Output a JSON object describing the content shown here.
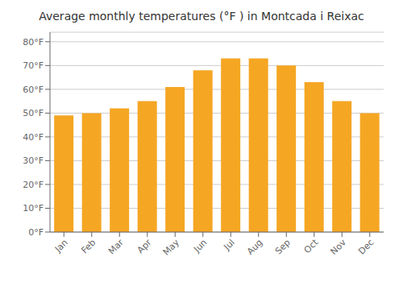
{
  "chart_data": {
    "type": "bar",
    "title": "Average monthly temperatures (°F ) in Montcada i Reixac",
    "categories": [
      "Jan",
      "Feb",
      "Mar",
      "Apr",
      "May",
      "Jun",
      "Jul",
      "Aug",
      "Sep",
      "Oct",
      "Nov",
      "Dec"
    ],
    "values": [
      49,
      50,
      52,
      55,
      61,
      68,
      73,
      73,
      70,
      63,
      55,
      50
    ],
    "color": "#F5A623",
    "ylim": [
      0,
      84
    ],
    "yticks": [
      {
        "value": 0,
        "label": "0°F"
      },
      {
        "value": 10,
        "label": "10°F"
      },
      {
        "value": 20,
        "label": "20°F"
      },
      {
        "value": 30,
        "label": "30°F"
      },
      {
        "value": 40,
        "label": "40°F"
      },
      {
        "value": 50,
        "label": "50°F"
      },
      {
        "value": 60,
        "label": "60°F"
      },
      {
        "value": 70,
        "label": "70°F"
      },
      {
        "value": 80,
        "label": "80°F"
      }
    ],
    "grid": true
  }
}
